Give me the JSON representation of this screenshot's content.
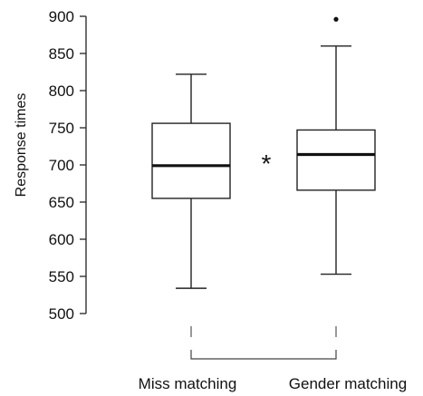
{
  "chart_data": {
    "type": "box",
    "ylabel": "Response times",
    "xlabel": "",
    "ylim": [
      500,
      900
    ],
    "yticks": [
      500,
      550,
      600,
      650,
      700,
      750,
      800,
      850,
      900
    ],
    "categories": [
      "Miss matching",
      "Gender matching"
    ],
    "boxes": [
      {
        "category": "Miss matching",
        "whisker_low": 534,
        "q1": 655,
        "median": 699,
        "q3": 756,
        "whisker_high": 822,
        "outliers": []
      },
      {
        "category": "Gender matching",
        "whisker_low": 553,
        "q1": 666,
        "median": 714,
        "q3": 747,
        "whisker_high": 860,
        "outliers": [
          896
        ]
      }
    ],
    "annotations": [
      {
        "text": "*"
      }
    ],
    "grid": false,
    "legend": "none"
  }
}
